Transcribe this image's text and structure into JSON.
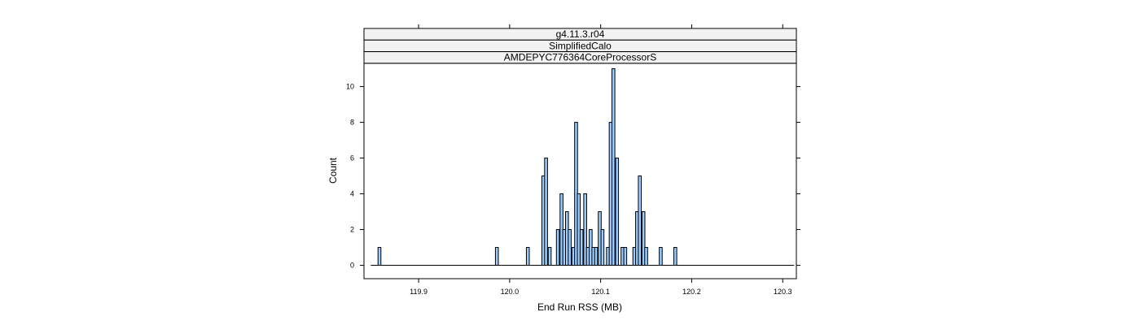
{
  "chart_data": {
    "type": "bar",
    "subtype": "histogram",
    "strips": [
      "g4.11.3.r04",
      "SimplifiedCalo",
      "AMDEPYC776364CoreProcessorS"
    ],
    "xlabel": "End Run RSS (MB)",
    "ylabel": "Count",
    "xlim": [
      119.84,
      120.315
    ],
    "ylim": [
      -0.75,
      11.3
    ],
    "x_ticks": [
      119.9,
      120.0,
      120.1,
      120.2,
      120.3
    ],
    "x_tick_labels": [
      "119.9",
      "120.0",
      "120.1",
      "120.2",
      "120.3"
    ],
    "y_ticks": [
      0,
      2,
      4,
      6,
      8,
      10
    ],
    "y_tick_labels": [
      "0",
      "2",
      "4",
      "6",
      "8",
      "10"
    ],
    "baseline_range": [
      119.8475,
      120.3125
    ],
    "bin_width": 0.0032,
    "bins": [
      {
        "x": 119.857,
        "count": 1
      },
      {
        "x": 119.986,
        "count": 1
      },
      {
        "x": 120.02,
        "count": 1
      },
      {
        "x": 120.037,
        "count": 5
      },
      {
        "x": 120.04,
        "count": 6
      },
      {
        "x": 120.044,
        "count": 1
      },
      {
        "x": 120.053,
        "count": 2
      },
      {
        "x": 120.057,
        "count": 4
      },
      {
        "x": 120.06,
        "count": 2
      },
      {
        "x": 120.063,
        "count": 3
      },
      {
        "x": 120.066,
        "count": 2
      },
      {
        "x": 120.07,
        "count": 1
      },
      {
        "x": 120.073,
        "count": 8
      },
      {
        "x": 120.076,
        "count": 4
      },
      {
        "x": 120.079,
        "count": 2
      },
      {
        "x": 120.083,
        "count": 4
      },
      {
        "x": 120.086,
        "count": 1
      },
      {
        "x": 120.089,
        "count": 2
      },
      {
        "x": 120.092,
        "count": 1
      },
      {
        "x": 120.095,
        "count": 1
      },
      {
        "x": 120.099,
        "count": 3
      },
      {
        "x": 120.102,
        "count": 2
      },
      {
        "x": 120.108,
        "count": 1
      },
      {
        "x": 120.111,
        "count": 8
      },
      {
        "x": 120.114,
        "count": 11
      },
      {
        "x": 120.118,
        "count": 6
      },
      {
        "x": 120.124,
        "count": 1
      },
      {
        "x": 120.127,
        "count": 1
      },
      {
        "x": 120.137,
        "count": 1
      },
      {
        "x": 120.14,
        "count": 3
      },
      {
        "x": 120.143,
        "count": 5
      },
      {
        "x": 120.147,
        "count": 3
      },
      {
        "x": 120.15,
        "count": 1
      },
      {
        "x": 120.166,
        "count": 1
      },
      {
        "x": 120.182,
        "count": 1
      }
    ],
    "colors": {
      "bar_fill": "#99CCFF",
      "bar_stroke": "#000000",
      "strip_fill": "#F2F2F2",
      "frame": "#000000"
    },
    "grid": false,
    "legend": "none"
  }
}
